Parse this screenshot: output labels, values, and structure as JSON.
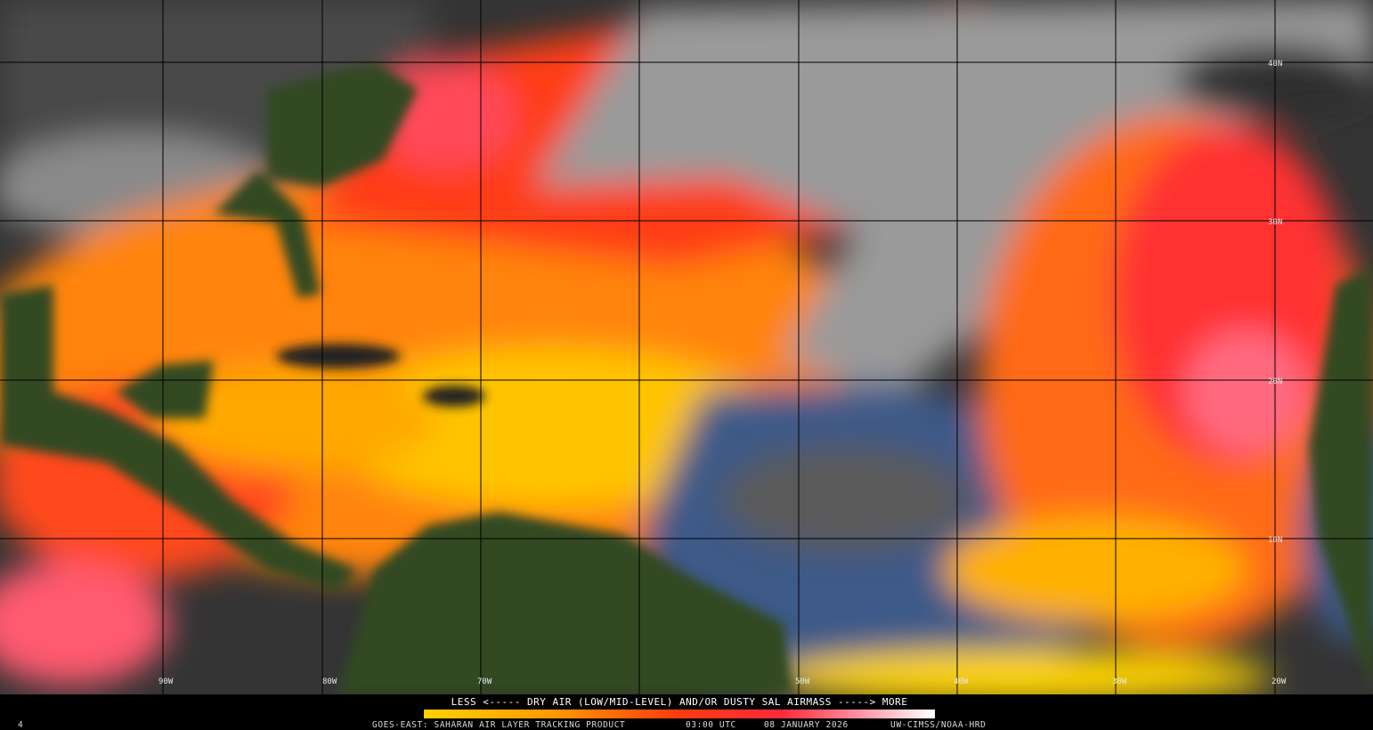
{
  "map": {
    "lat_labels": [
      "40N",
      "30N",
      "20N",
      "10N"
    ],
    "lon_labels": [
      "90W",
      "80W",
      "70W",
      "50W",
      "40W",
      "30W",
      "20W"
    ],
    "legend_caption": "LESS <----- DRY AIR (LOW/MID-LEVEL) AND/OR DUSTY SAL AIRMASS -----> MORE"
  },
  "footer": {
    "corner_mark": "4",
    "product": "GOES-EAST: SAHARAN AIR LAYER TRACKING PRODUCT",
    "time": "03:00 UTC",
    "date": "08 JANUARY 2026",
    "credit": "UW-CIMSS/NOAA-HRD"
  }
}
